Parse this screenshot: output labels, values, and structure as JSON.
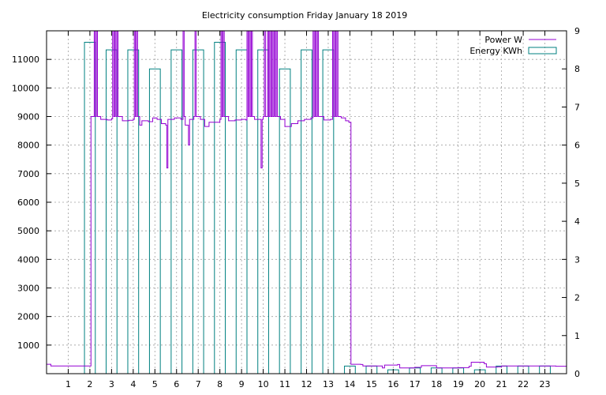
{
  "chart_data": {
    "type": "bar+line",
    "title": "Electricity consumption Friday January 18 2019",
    "xlim": [
      0,
      24
    ],
    "x_ticks": [
      "1",
      "2",
      "3",
      "4",
      "5",
      "6",
      "7",
      "8",
      "9",
      "10",
      "11",
      "12",
      "13",
      "14",
      "15",
      "16",
      "17",
      "18",
      "19",
      "20",
      "21",
      "22",
      "23"
    ],
    "y_left": {
      "range": [
        0,
        12000
      ],
      "ticks": [
        "1000",
        "2000",
        "3000",
        "4000",
        "5000",
        "6000",
        "7000",
        "8000",
        "9000",
        "10000",
        "11000"
      ]
    },
    "y_right": {
      "range": [
        0,
        9
      ],
      "ticks": [
        "0",
        "1",
        "2",
        "3",
        "4",
        "5",
        "6",
        "7",
        "8",
        "9"
      ]
    },
    "grid": true,
    "legend_position": "top-right",
    "series": [
      {
        "name": "Power W",
        "axis": "left",
        "color": "#9400d3",
        "points": [
          [
            0.0,
            330
          ],
          [
            0.2,
            270
          ],
          [
            2.0,
            270
          ],
          [
            2.05,
            9000
          ],
          [
            2.2,
            12000
          ],
          [
            2.25,
            9000
          ],
          [
            2.3,
            12000
          ],
          [
            2.35,
            9000
          ],
          [
            2.5,
            8900
          ],
          [
            2.8,
            8880
          ],
          [
            3.0,
            8920
          ],
          [
            3.05,
            12000
          ],
          [
            3.1,
            9000
          ],
          [
            3.15,
            12000
          ],
          [
            3.2,
            9000
          ],
          [
            3.25,
            12000
          ],
          [
            3.3,
            9000
          ],
          [
            3.5,
            8850
          ],
          [
            3.8,
            8870
          ],
          [
            4.0,
            8900
          ],
          [
            4.05,
            12000
          ],
          [
            4.1,
            9000
          ],
          [
            4.15,
            12000
          ],
          [
            4.2,
            9000
          ],
          [
            4.3,
            8700
          ],
          [
            4.4,
            8850
          ],
          [
            4.7,
            8820
          ],
          [
            4.9,
            8950
          ],
          [
            5.1,
            8900
          ],
          [
            5.3,
            8750
          ],
          [
            5.5,
            8700
          ],
          [
            5.55,
            7200
          ],
          [
            5.6,
            8900
          ],
          [
            5.9,
            8950
          ],
          [
            6.2,
            8900
          ],
          [
            6.3,
            12000
          ],
          [
            6.35,
            9000
          ],
          [
            6.4,
            8700
          ],
          [
            6.55,
            8000
          ],
          [
            6.6,
            8900
          ],
          [
            6.8,
            9000
          ],
          [
            6.85,
            12000
          ],
          [
            6.9,
            9000
          ],
          [
            7.1,
            8900
          ],
          [
            7.3,
            8650
          ],
          [
            7.5,
            8800
          ],
          [
            7.8,
            8800
          ],
          [
            8.0,
            8900
          ],
          [
            8.05,
            12000
          ],
          [
            8.1,
            9000
          ],
          [
            8.15,
            12000
          ],
          [
            8.2,
            9000
          ],
          [
            8.4,
            8850
          ],
          [
            8.7,
            8880
          ],
          [
            9.0,
            8900
          ],
          [
            9.2,
            8880
          ],
          [
            9.25,
            12000
          ],
          [
            9.3,
            9000
          ],
          [
            9.35,
            12000
          ],
          [
            9.4,
            9000
          ],
          [
            9.45,
            12000
          ],
          [
            9.5,
            9000
          ],
          [
            9.6,
            8900
          ],
          [
            9.8,
            8900
          ],
          [
            9.9,
            7200
          ],
          [
            9.95,
            8900
          ],
          [
            10.0,
            9000
          ],
          [
            10.05,
            12000
          ],
          [
            10.1,
            9000
          ],
          [
            10.2,
            12000
          ],
          [
            10.25,
            9000
          ],
          [
            10.3,
            12000
          ],
          [
            10.35,
            9000
          ],
          [
            10.4,
            12000
          ],
          [
            10.45,
            9000
          ],
          [
            10.5,
            12000
          ],
          [
            10.55,
            9000
          ],
          [
            10.6,
            12000
          ],
          [
            10.65,
            9000
          ],
          [
            10.8,
            8900
          ],
          [
            11.0,
            8650
          ],
          [
            11.3,
            8750
          ],
          [
            11.6,
            8850
          ],
          [
            11.9,
            8900
          ],
          [
            12.2,
            8950
          ],
          [
            12.3,
            12000
          ],
          [
            12.35,
            9000
          ],
          [
            12.4,
            12000
          ],
          [
            12.45,
            9000
          ],
          [
            12.5,
            12000
          ],
          [
            12.55,
            9000
          ],
          [
            12.8,
            8880
          ],
          [
            13.1,
            8900
          ],
          [
            13.2,
            12000
          ],
          [
            13.25,
            9000
          ],
          [
            13.3,
            12000
          ],
          [
            13.35,
            9000
          ],
          [
            13.4,
            12000
          ],
          [
            13.45,
            9000
          ],
          [
            13.6,
            8950
          ],
          [
            13.8,
            8850
          ],
          [
            13.95,
            8800
          ],
          [
            14.05,
            330
          ],
          [
            14.5,
            320
          ],
          [
            14.6,
            270
          ],
          [
            15.5,
            200
          ],
          [
            15.6,
            300
          ],
          [
            16.2,
            320
          ],
          [
            16.3,
            200
          ],
          [
            17.0,
            220
          ],
          [
            17.3,
            280
          ],
          [
            18.0,
            200
          ],
          [
            19.0,
            210
          ],
          [
            19.5,
            260
          ],
          [
            19.6,
            400
          ],
          [
            20.2,
            350
          ],
          [
            20.3,
            230
          ],
          [
            20.8,
            240
          ],
          [
            21.0,
            270
          ],
          [
            23.5,
            260
          ],
          [
            24.0,
            250
          ]
        ]
      },
      {
        "name": "Energy KWh",
        "axis": "right",
        "color": "#008080",
        "steps": [
          {
            "x": 1.75,
            "y": 8.7
          },
          {
            "x": 2.25,
            "y": 0
          },
          {
            "x": 2.75,
            "y": 8.5
          },
          {
            "x": 3.25,
            "y": 0
          },
          {
            "x": 3.75,
            "y": 8.5
          },
          {
            "x": 4.25,
            "y": 0
          },
          {
            "x": 4.75,
            "y": 8.0
          },
          {
            "x": 5.25,
            "y": 0
          },
          {
            "x": 5.75,
            "y": 8.5
          },
          {
            "x": 6.25,
            "y": 0
          },
          {
            "x": 6.75,
            "y": 8.5
          },
          {
            "x": 7.25,
            "y": 0
          },
          {
            "x": 7.75,
            "y": 8.7
          },
          {
            "x": 8.25,
            "y": 0
          },
          {
            "x": 8.75,
            "y": 8.5
          },
          {
            "x": 9.25,
            "y": 0
          },
          {
            "x": 9.75,
            "y": 8.5
          },
          {
            "x": 10.25,
            "y": 0
          },
          {
            "x": 10.75,
            "y": 8.0
          },
          {
            "x": 11.25,
            "y": 0
          },
          {
            "x": 11.75,
            "y": 8.5
          },
          {
            "x": 12.25,
            "y": 0
          },
          {
            "x": 12.75,
            "y": 8.5
          },
          {
            "x": 13.25,
            "y": 0
          },
          {
            "x": 13.75,
            "y": 0.2
          },
          {
            "x": 14.25,
            "y": 0
          },
          {
            "x": 14.75,
            "y": 0.2
          },
          {
            "x": 15.25,
            "y": 0
          },
          {
            "x": 15.75,
            "y": 0.1
          },
          {
            "x": 16.25,
            "y": 0
          },
          {
            "x": 16.75,
            "y": 0.15
          },
          {
            "x": 17.25,
            "y": 0
          },
          {
            "x": 17.75,
            "y": 0.15
          },
          {
            "x": 18.25,
            "y": 0
          },
          {
            "x": 18.75,
            "y": 0.15
          },
          {
            "x": 19.25,
            "y": 0
          },
          {
            "x": 19.75,
            "y": 0.1
          },
          {
            "x": 20.25,
            "y": 0
          },
          {
            "x": 20.75,
            "y": 0.2
          },
          {
            "x": 21.25,
            "y": 0
          },
          {
            "x": 21.75,
            "y": 0.2
          },
          {
            "x": 22.25,
            "y": 0
          },
          {
            "x": 22.75,
            "y": 0.2
          },
          {
            "x": 23.25,
            "y": 0
          }
        ]
      }
    ]
  }
}
